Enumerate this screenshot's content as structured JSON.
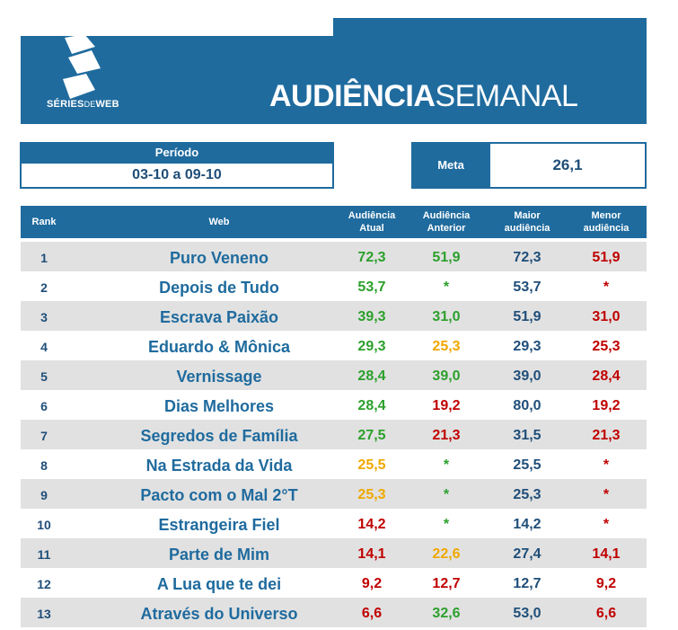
{
  "colors": {
    "primary": "#1f6b9e",
    "text_dark": "#1f4e79",
    "green": "#2ca02c",
    "yellow": "#f0a800",
    "red": "#c00000",
    "row_shade": "#e1e1e1"
  },
  "logo": {
    "icon": "stylized-s-logo-icon",
    "text_bold": "SÉRIES",
    "text_light": "DE",
    "text_bold2": "WEB"
  },
  "title": {
    "bold": "AUDIÊNCIA",
    "regular": "SEMANAL"
  },
  "period": {
    "label": "Período",
    "value": "03-10 a 09-10"
  },
  "meta": {
    "label": "Meta",
    "value": "26,1"
  },
  "columns": {
    "rank": "Rank",
    "web": "Web",
    "atual": [
      "Audiência",
      "Atual"
    ],
    "anterior": [
      "Audiência",
      "Anterior"
    ],
    "maior": [
      "Maior",
      "audiência"
    ],
    "menor": [
      "Menor",
      "audiência"
    ]
  },
  "rows": [
    {
      "rank": "1",
      "web": "Puro Veneno",
      "atual": "72,3",
      "atual_color": "green",
      "anterior": "51,9",
      "anterior_color": "green",
      "maior": "72,3",
      "menor": "51,9",
      "menor_color": "red"
    },
    {
      "rank": "2",
      "web": "Depois de Tudo",
      "atual": "53,7",
      "atual_color": "green",
      "anterior": "*",
      "anterior_color": "green",
      "maior": "53,7",
      "menor": "*",
      "menor_color": "red"
    },
    {
      "rank": "3",
      "web": "Escrava Paixão",
      "atual": "39,3",
      "atual_color": "green",
      "anterior": "31,0",
      "anterior_color": "green",
      "maior": "51,9",
      "menor": "31,0",
      "menor_color": "red"
    },
    {
      "rank": "4",
      "web": "Eduardo & Mônica",
      "atual": "29,3",
      "atual_color": "green",
      "anterior": "25,3",
      "anterior_color": "yellow",
      "maior": "29,3",
      "menor": "25,3",
      "menor_color": "red"
    },
    {
      "rank": "5",
      "web": "Vernissage",
      "atual": "28,4",
      "atual_color": "green",
      "anterior": "39,0",
      "anterior_color": "green",
      "maior": "39,0",
      "menor": "28,4",
      "menor_color": "red"
    },
    {
      "rank": "6",
      "web": "Dias Melhores",
      "atual": "28,4",
      "atual_color": "green",
      "anterior": "19,2",
      "anterior_color": "red",
      "maior": "80,0",
      "menor": "19,2",
      "menor_color": "red"
    },
    {
      "rank": "7",
      "web": "Segredos de Família",
      "atual": "27,5",
      "atual_color": "green",
      "anterior": "21,3",
      "anterior_color": "red",
      "maior": "31,5",
      "menor": "21,3",
      "menor_color": "red"
    },
    {
      "rank": "8",
      "web": "Na Estrada da Vida",
      "atual": "25,5",
      "atual_color": "yellow",
      "anterior": "*",
      "anterior_color": "green",
      "maior": "25,5",
      "menor": "*",
      "menor_color": "red"
    },
    {
      "rank": "9",
      "web": "Pacto com o Mal 2°T",
      "atual": "25,3",
      "atual_color": "yellow",
      "anterior": "*",
      "anterior_color": "green",
      "maior": "25,3",
      "menor": "*",
      "menor_color": "red"
    },
    {
      "rank": "10",
      "web": "Estrangeira Fiel",
      "atual": "14,2",
      "atual_color": "red",
      "anterior": "*",
      "anterior_color": "green",
      "maior": "14,2",
      "menor": "*",
      "menor_color": "red"
    },
    {
      "rank": "11",
      "web": "Parte de Mim",
      "atual": "14,1",
      "atual_color": "red",
      "anterior": "22,6",
      "anterior_color": "yellow",
      "maior": "27,4",
      "menor": "14,1",
      "menor_color": "red"
    },
    {
      "rank": "12",
      "web": "A Lua que te dei",
      "atual": "9,2",
      "atual_color": "red",
      "anterior": "12,7",
      "anterior_color": "red",
      "maior": "12,7",
      "menor": "9,2",
      "menor_color": "red"
    },
    {
      "rank": "13",
      "web": "Através do Universo",
      "atual": "6,6",
      "atual_color": "red",
      "anterior": "32,6",
      "anterior_color": "green",
      "maior": "53,0",
      "menor": "6,6",
      "menor_color": "red"
    }
  ]
}
